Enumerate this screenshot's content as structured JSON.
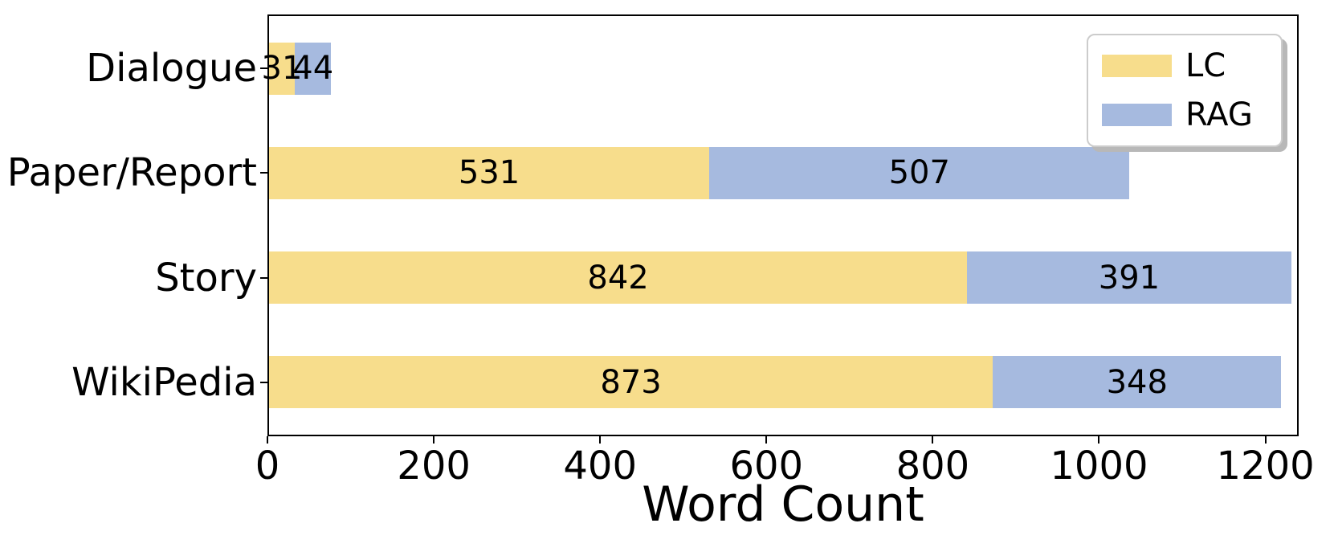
{
  "chart_data": {
    "type": "bar",
    "orientation": "horizontal",
    "stacked": true,
    "title": "",
    "xlabel": "Word Count",
    "ylabel": "",
    "categories": [
      "Dialogue",
      "Paper/Report",
      "Story",
      "WikiPedia"
    ],
    "series": [
      {
        "name": "LC",
        "color": "#F7DD8C",
        "values": [
          31,
          531,
          842,
          873
        ]
      },
      {
        "name": "RAG",
        "color": "#A6BADF",
        "values": [
          44,
          507,
          391,
          348
        ]
      }
    ],
    "totals": [
      75,
      1038,
      1233,
      1221
    ],
    "bar_value_labels_shown": true,
    "x_ticks": [
      0,
      200,
      400,
      600,
      800,
      1000,
      1200
    ],
    "xlim": [
      0,
      1240
    ],
    "grid": false,
    "legend": {
      "position": "upper right",
      "entries": [
        {
          "label": "LC",
          "color": "#F7DD8C"
        },
        {
          "label": "RAG",
          "color": "#A6BADF"
        }
      ]
    },
    "axis_color": "#000000",
    "text_color": "#000000",
    "background_color": "#ffffff"
  }
}
